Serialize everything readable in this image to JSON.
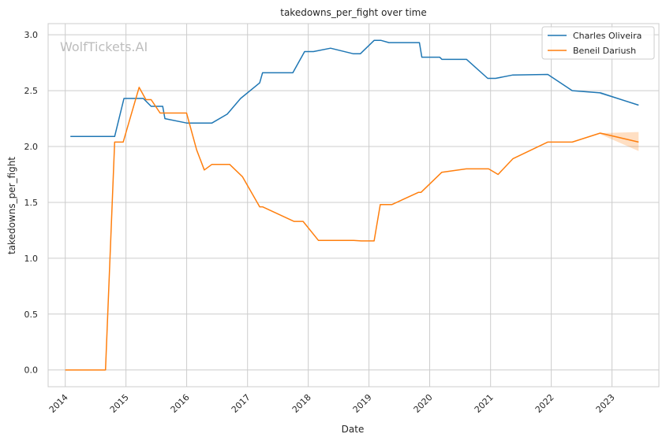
{
  "chart_data": {
    "type": "line",
    "title": "takedowns_per_fight over time",
    "xlabel": "Date",
    "ylabel": "takedowns_per_fight",
    "watermark": "WolfTickets.AI",
    "x_ticks": [
      "2014",
      "2015",
      "2016",
      "2017",
      "2018",
      "2019",
      "2020",
      "2021",
      "2022",
      "2023"
    ],
    "y_ticks": [
      "0.0",
      "0.5",
      "1.0",
      "1.5",
      "2.0",
      "2.5",
      "3.0"
    ],
    "xlim": [
      "2013-09-20",
      "2023-10-10"
    ],
    "ylim": [
      -0.15,
      3.1
    ],
    "grid": true,
    "legend_position": "top-right",
    "series": [
      {
        "name": "Charles Oliveira",
        "color": "#1f77b4",
        "points": [
          [
            "2014-02-01",
            2.09
          ],
          [
            "2014-10-25",
            2.09
          ],
          [
            "2014-12-20",
            2.43
          ],
          [
            "2015-04-15",
            2.43
          ],
          [
            "2015-06-01",
            2.36
          ],
          [
            "2015-08-10",
            2.36
          ],
          [
            "2015-08-23",
            2.25
          ],
          [
            "2016-01-01",
            2.21
          ],
          [
            "2016-06-01",
            2.21
          ],
          [
            "2016-09-01",
            2.29
          ],
          [
            "2016-11-20",
            2.43
          ],
          [
            "2017-03-15",
            2.57
          ],
          [
            "2017-04-01",
            2.66
          ],
          [
            "2017-09-30",
            2.66
          ],
          [
            "2017-12-10",
            2.85
          ],
          [
            "2018-02-01",
            2.85
          ],
          [
            "2018-05-15",
            2.88
          ],
          [
            "2018-09-30",
            2.83
          ],
          [
            "2018-11-10",
            2.83
          ],
          [
            "2019-02-01",
            2.95
          ],
          [
            "2019-03-15",
            2.95
          ],
          [
            "2019-05-01",
            2.93
          ],
          [
            "2019-10-31",
            2.93
          ],
          [
            "2019-11-15",
            2.8
          ],
          [
            "2020-03-01",
            2.8
          ],
          [
            "2020-03-15",
            2.78
          ],
          [
            "2020-08-10",
            2.78
          ],
          [
            "2020-12-15",
            2.61
          ],
          [
            "2021-01-31",
            2.61
          ],
          [
            "2021-05-15",
            2.64
          ],
          [
            "2021-12-11",
            2.645
          ],
          [
            "2022-05-07",
            2.5
          ],
          [
            "2022-10-22",
            2.48
          ],
          [
            "2023-06-10",
            2.37
          ]
        ],
        "band": {
          "start": "2022-10-22",
          "end": "2023-06-10",
          "upper": [
            2.49,
            2.37
          ],
          "lower": [
            2.47,
            2.37
          ]
        }
      },
      {
        "name": "Beneil Dariush",
        "color": "#ff7f0e",
        "points": [
          [
            "2014-01-01",
            0.0
          ],
          [
            "2014-08-31",
            0.0
          ],
          [
            "2014-10-25",
            2.04
          ],
          [
            "2014-12-15",
            2.04
          ],
          [
            "2015-03-21",
            2.53
          ],
          [
            "2015-05-01",
            2.42
          ],
          [
            "2015-06-01",
            2.42
          ],
          [
            "2015-07-25",
            2.3
          ],
          [
            "2015-12-31",
            2.3
          ],
          [
            "2016-03-01",
            1.97
          ],
          [
            "2016-04-16",
            1.79
          ],
          [
            "2016-06-01",
            1.84
          ],
          [
            "2016-09-15",
            1.84
          ],
          [
            "2016-12-01",
            1.73
          ],
          [
            "2017-03-15",
            1.46
          ],
          [
            "2017-04-01",
            1.46
          ],
          [
            "2017-10-07",
            1.33
          ],
          [
            "2017-12-01",
            1.33
          ],
          [
            "2018-03-03",
            1.16
          ],
          [
            "2018-10-01",
            1.16
          ],
          [
            "2018-11-15",
            1.155
          ],
          [
            "2019-02-01",
            1.155
          ],
          [
            "2019-03-10",
            1.48
          ],
          [
            "2019-05-18",
            1.48
          ],
          [
            "2019-10-26",
            1.59
          ],
          [
            "2019-11-10",
            1.59
          ],
          [
            "2020-03-14",
            1.77
          ],
          [
            "2020-08-08",
            1.8
          ],
          [
            "2020-12-20",
            1.8
          ],
          [
            "2021-02-15",
            1.75
          ],
          [
            "2021-05-15",
            1.89
          ],
          [
            "2021-12-10",
            2.04
          ],
          [
            "2022-05-07",
            2.04
          ],
          [
            "2022-10-22",
            2.12
          ],
          [
            "2023-06-10",
            2.04
          ]
        ],
        "band": {
          "start": "2022-10-22",
          "end": "2023-06-10",
          "upper": [
            2.12,
            2.13
          ],
          "lower": [
            2.11,
            1.96
          ]
        }
      }
    ]
  }
}
